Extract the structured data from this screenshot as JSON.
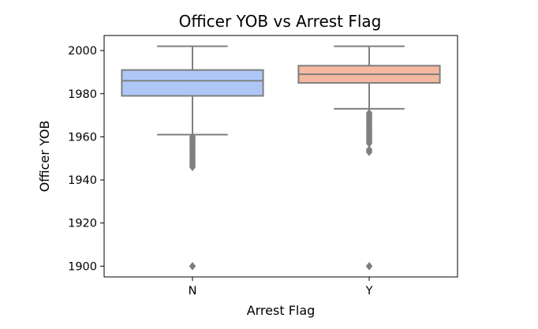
{
  "chart_data": {
    "type": "box",
    "title": "Officer YOB vs Arrest Flag",
    "xlabel": "Arrest Flag",
    "ylabel": "Officer YOB",
    "categories": [
      "N",
      "Y"
    ],
    "ylim": [
      1895,
      2007
    ],
    "yticks": [
      1900,
      1920,
      1940,
      1960,
      1980,
      2000
    ],
    "grid": false,
    "colors": {
      "N": "#aec7f7",
      "Y": "#f4b9a0",
      "line": "#7f7f7f"
    },
    "boxes": [
      {
        "category": "N",
        "whisker_low": 1961,
        "q1": 1979,
        "median": 1986,
        "q3": 1991,
        "whisker_high": 2002,
        "outliers": [
          1960,
          1959,
          1958,
          1957,
          1956,
          1955,
          1954,
          1953,
          1952,
          1951,
          1950,
          1949,
          1948,
          1947,
          1946,
          1900
        ]
      },
      {
        "category": "Y",
        "whisker_low": 1973,
        "q1": 1985,
        "median": 1989,
        "q3": 1993,
        "whisker_high": 2002,
        "outliers": [
          1971,
          1970,
          1969,
          1968,
          1967,
          1966,
          1965,
          1964,
          1963,
          1962,
          1961,
          1960,
          1959,
          1958,
          1957,
          1954,
          1953,
          1900
        ]
      }
    ]
  }
}
